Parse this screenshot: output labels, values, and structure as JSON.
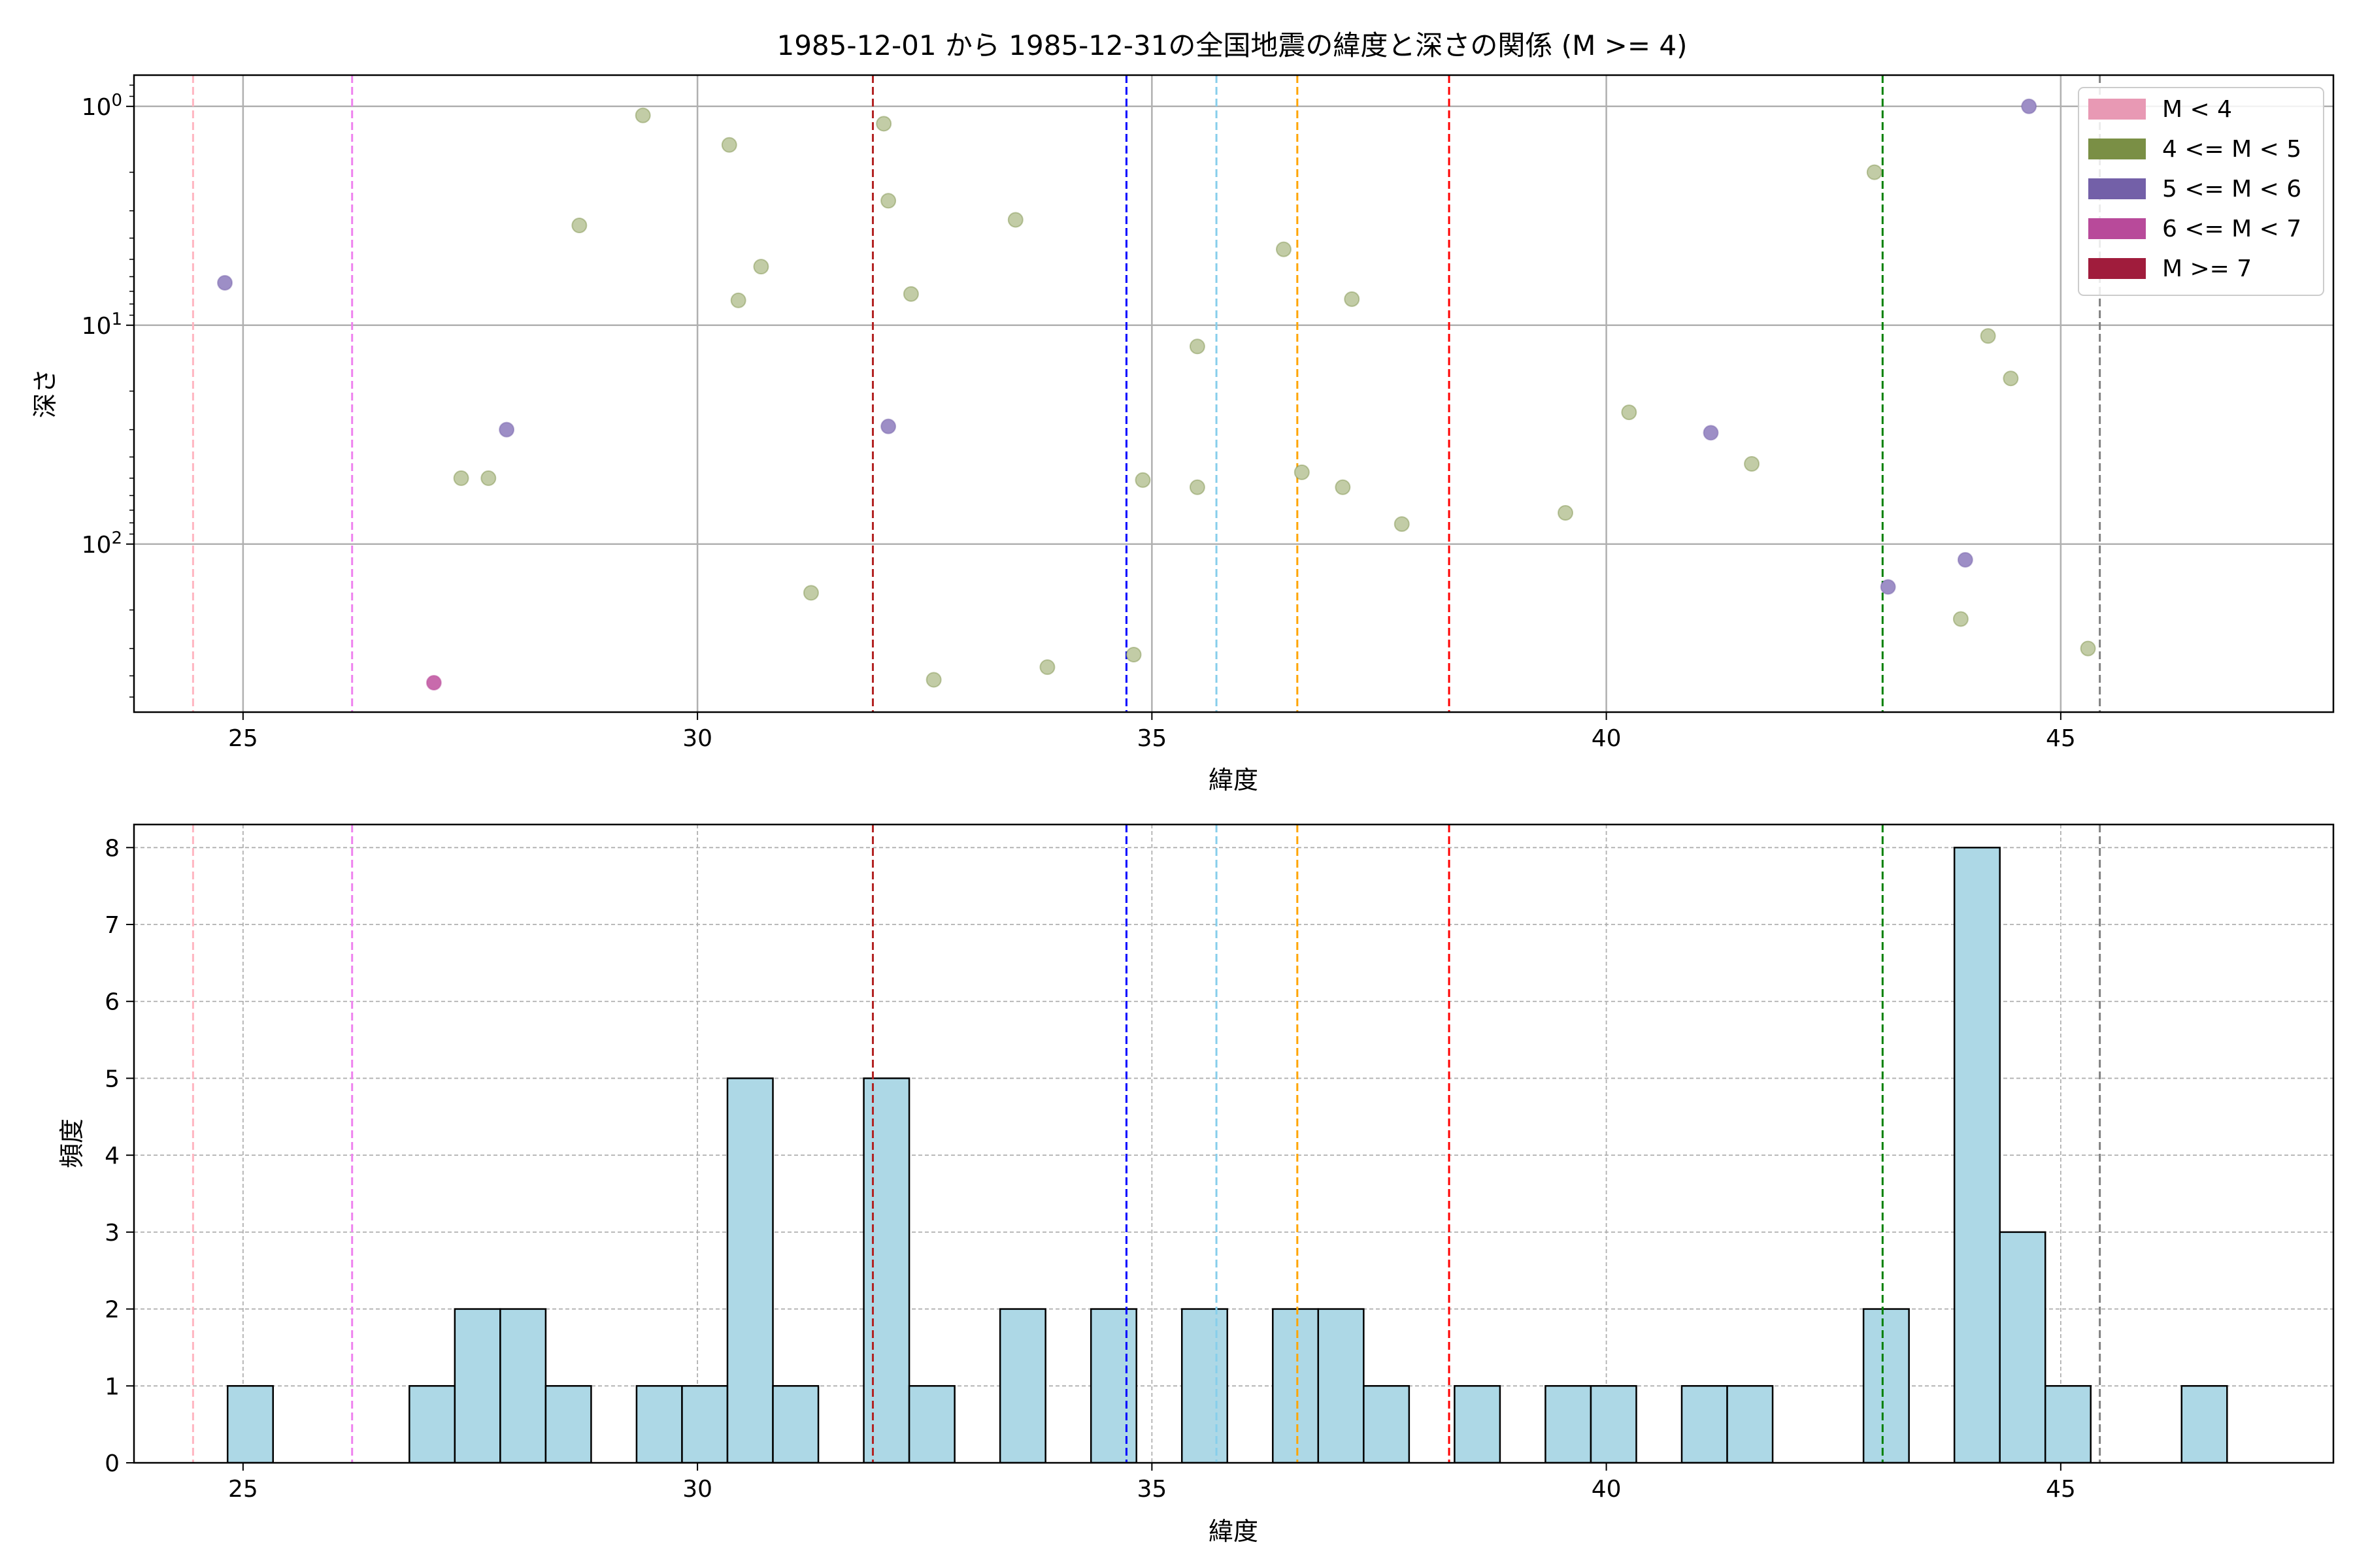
{
  "figure_title": "1985-12-01 から 1985-12-31の全国地震の緯度と深さの関係 (M >= 4)",
  "colors": {
    "axis": "#000000",
    "grid_top": "#b0b0b0",
    "grid_bottom": "#b0b0b0",
    "hist_fill": "#add8e6",
    "hist_edge": "#000000",
    "magnitude": {
      "M<4": "#e899b4",
      "4<=M<5": "#7a8f45",
      "5<=M<6": "#7360a8",
      "6<=M<7": "#b84a9a",
      "M>=7": "#a01c3c"
    },
    "point_fill": {
      "4<=M<5": "#c2cca6",
      "5<=M<6": "#9d8ec6",
      "6<=M<7": "#c86aac"
    }
  },
  "chart_data": [
    {
      "type": "scatter",
      "title": "1985-12-01 から 1985-12-31の全国地震の緯度と深さの関係 (M >= 4)",
      "xlabel": "緯度",
      "ylabel": "深さ",
      "xlim": [
        23.8,
        48.0
      ],
      "ylim": [
        586,
        0.72
      ],
      "y_scale": "log",
      "y_inverted": true,
      "grid": true,
      "legend_position": "top-right",
      "x_ticks": [
        25,
        30,
        35,
        40,
        45
      ],
      "x_tick_labels": [
        "25",
        "30",
        "35",
        "40",
        "45"
      ],
      "y_ticks": [
        1,
        10,
        100
      ],
      "y_tick_labels": [
        "10^0",
        "10^1",
        "10^2"
      ],
      "legend": [
        {
          "key": "M<4",
          "label": "M < 4"
        },
        {
          "key": "4<=M<5",
          "label": "4 <= M < 5"
        },
        {
          "key": "5<=M<6",
          "label": "5 <= M < 6"
        },
        {
          "key": "6<=M<7",
          "label": "6 <= M < 7"
        },
        {
          "key": "M>=7",
          "label": "M >= 7"
        }
      ],
      "vlines": [
        {
          "x": 24.45,
          "color": "#ffb6c1"
        },
        {
          "x": 26.2,
          "color": "#ee82ee"
        },
        {
          "x": 31.93,
          "color": "#b22222"
        },
        {
          "x": 34.72,
          "color": "#0000ff"
        },
        {
          "x": 35.71,
          "color": "#87ceeb"
        },
        {
          "x": 36.6,
          "color": "#ffa500"
        },
        {
          "x": 38.27,
          "color": "#ff0000"
        },
        {
          "x": 43.04,
          "color": "#008000"
        },
        {
          "x": 45.43,
          "color": "#808080"
        }
      ],
      "series": [
        {
          "key": "4<=M<5",
          "points": [
            {
              "x": 27.4,
              "y": 50
            },
            {
              "x": 27.7,
              "y": 50
            },
            {
              "x": 28.7,
              "y": 3.5
            },
            {
              "x": 29.4,
              "y": 1.1
            },
            {
              "x": 30.35,
              "y": 1.5
            },
            {
              "x": 30.45,
              "y": 7.7
            },
            {
              "x": 30.7,
              "y": 5.4
            },
            {
              "x": 31.25,
              "y": 167
            },
            {
              "x": 32.05,
              "y": 1.2
            },
            {
              "x": 32.1,
              "y": 2.7
            },
            {
              "x": 32.35,
              "y": 7.2
            },
            {
              "x": 32.6,
              "y": 417
            },
            {
              "x": 33.5,
              "y": 3.3
            },
            {
              "x": 33.85,
              "y": 365
            },
            {
              "x": 34.8,
              "y": 320
            },
            {
              "x": 34.9,
              "y": 51
            },
            {
              "x": 35.5,
              "y": 12.5
            },
            {
              "x": 35.5,
              "y": 55
            },
            {
              "x": 36.45,
              "y": 4.5
            },
            {
              "x": 36.65,
              "y": 47
            },
            {
              "x": 37.1,
              "y": 55
            },
            {
              "x": 37.2,
              "y": 7.6
            },
            {
              "x": 37.75,
              "y": 81
            },
            {
              "x": 39.55,
              "y": 72
            },
            {
              "x": 40.25,
              "y": 25
            },
            {
              "x": 41.6,
              "y": 43
            },
            {
              "x": 42.95,
              "y": 2.0
            },
            {
              "x": 43.9,
              "y": 220
            },
            {
              "x": 44.2,
              "y": 11.2
            },
            {
              "x": 44.45,
              "y": 17.5
            },
            {
              "x": 45.3,
              "y": 300
            }
          ]
        },
        {
          "key": "5<=M<6",
          "points": [
            {
              "x": 24.8,
              "y": 6.4
            },
            {
              "x": 27.9,
              "y": 30
            },
            {
              "x": 32.1,
              "y": 29
            },
            {
              "x": 41.15,
              "y": 31
            },
            {
              "x": 43.1,
              "y": 157
            },
            {
              "x": 43.95,
              "y": 118
            },
            {
              "x": 44.65,
              "y": 1.0
            }
          ]
        },
        {
          "key": "6<=M<7",
          "points": [
            {
              "x": 27.1,
              "y": 430
            }
          ]
        }
      ]
    },
    {
      "type": "bar",
      "title": "",
      "xlabel": "緯度",
      "ylabel": "頻度",
      "xlim": [
        23.8,
        48.0
      ],
      "ylim": [
        0,
        8.3
      ],
      "grid": true,
      "x_ticks": [
        25,
        30,
        35,
        40,
        45
      ],
      "x_tick_labels": [
        "25",
        "30",
        "35",
        "40",
        "45"
      ],
      "y_ticks": [
        0,
        1,
        2,
        3,
        4,
        5,
        6,
        7,
        8
      ],
      "y_tick_labels": [
        "0",
        "1",
        "2",
        "3",
        "4",
        "5",
        "6",
        "7",
        "8"
      ],
      "bin_edges": [
        24.83,
        25.33,
        25.83,
        26.33,
        26.83,
        27.33,
        27.83,
        28.33,
        28.83,
        29.33,
        29.83,
        30.33,
        30.83,
        31.33,
        31.83,
        32.33,
        32.83,
        33.33,
        33.83,
        34.33,
        34.83,
        35.33,
        35.83,
        36.33,
        36.83,
        37.33,
        37.83,
        38.33,
        38.83,
        39.33,
        39.83,
        40.33,
        40.83,
        41.33,
        41.83,
        42.33,
        42.83,
        43.33,
        43.83,
        44.33,
        44.83,
        45.33,
        45.83,
        46.33,
        46.83
      ],
      "counts": [
        1,
        0,
        0,
        0,
        1,
        2,
        2,
        1,
        0,
        1,
        1,
        5,
        1,
        0,
        5,
        1,
        0,
        2,
        0,
        2,
        0,
        2,
        0,
        2,
        2,
        1,
        0,
        1,
        0,
        1,
        1,
        0,
        1,
        1,
        0,
        0,
        2,
        0,
        8,
        3,
        1,
        0,
        0,
        1
      ],
      "vlines": [
        {
          "x": 24.45,
          "color": "#ffb6c1"
        },
        {
          "x": 26.2,
          "color": "#ee82ee"
        },
        {
          "x": 31.93,
          "color": "#b22222"
        },
        {
          "x": 34.72,
          "color": "#0000ff"
        },
        {
          "x": 35.71,
          "color": "#87ceeb"
        },
        {
          "x": 36.6,
          "color": "#ffa500"
        },
        {
          "x": 38.27,
          "color": "#ff0000"
        },
        {
          "x": 43.04,
          "color": "#008000"
        },
        {
          "x": 45.43,
          "color": "#808080"
        }
      ]
    }
  ]
}
